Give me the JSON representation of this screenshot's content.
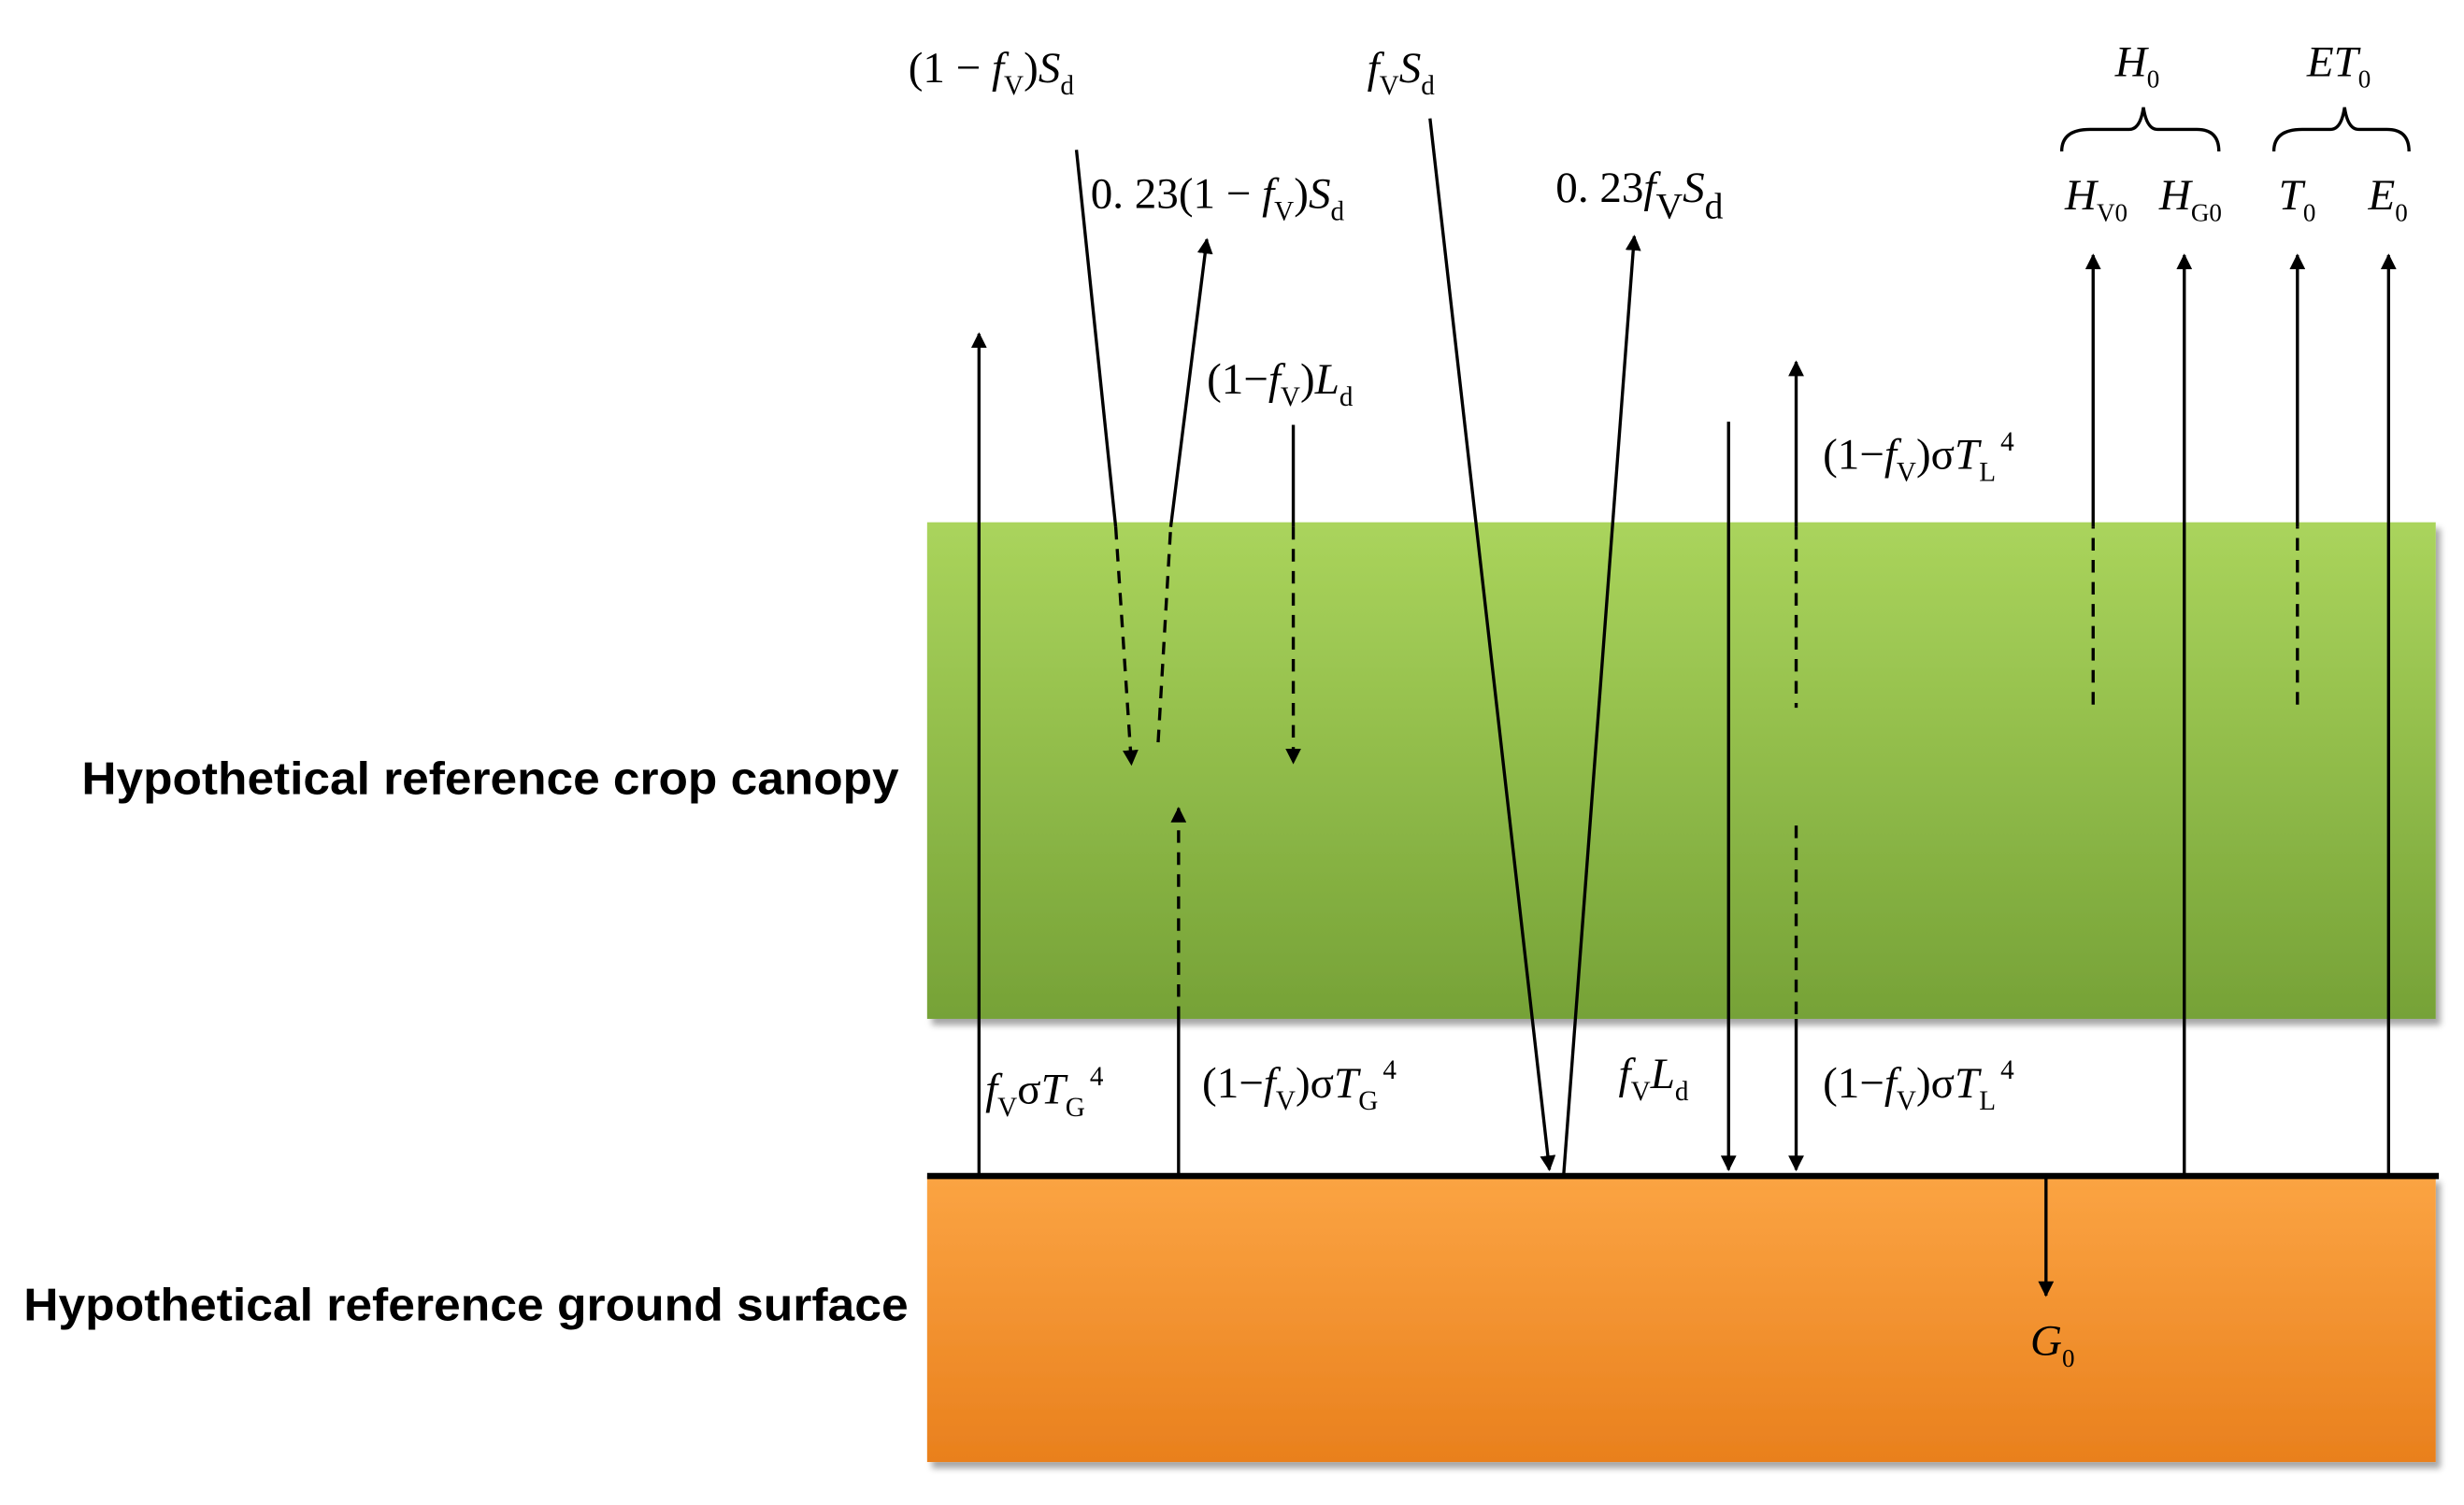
{
  "labels": [
    {
      "runs": [
        {
          "text": "(1 − "
        },
        {
          "text": "f",
          "sub": "V"
        },
        {
          "text": ")"
        },
        {
          "text": "S",
          "sub": "d"
        }
      ]
    },
    {
      "runs": [
        {
          "text": "0. 23(1 − "
        },
        {
          "text": "f",
          "sub": "V"
        },
        {
          "text": ")"
        },
        {
          "text": "S",
          "sub": "d"
        }
      ]
    },
    {
      "runs": [
        {
          "text": "f",
          "sub": "V"
        },
        {
          "text": "S",
          "sub": "d"
        }
      ]
    },
    {
      "runs": [
        {
          "text": "0. 23"
        },
        {
          "text": "f",
          "sub": "V"
        },
        {
          "text": "S",
          "sub": "d"
        }
      ]
    },
    {
      "runs": [
        {
          "text": "(1−"
        },
        {
          "text": "f",
          "sub": "V"
        },
        {
          "text": ")"
        },
        {
          "text": "L",
          "sub": "d"
        }
      ]
    },
    {
      "runs": [
        {
          "text": "(1−"
        },
        {
          "text": "f",
          "sub": "V"
        },
        {
          "text": ")σ"
        },
        {
          "text": "T",
          "sub": "L",
          "sup": "4"
        }
      ]
    },
    {
      "runs": [
        {
          "text": "H",
          "sub": "0"
        }
      ]
    },
    {
      "runs": [
        {
          "text": "H",
          "sub": "V0"
        }
      ]
    },
    {
      "runs": [
        {
          "text": "H",
          "sub": "G0"
        }
      ]
    },
    {
      "runs": [
        {
          "text": "ET",
          "sub": "0"
        }
      ]
    },
    {
      "runs": [
        {
          "text": "T",
          "sub": "0"
        }
      ]
    },
    {
      "runs": [
        {
          "text": "E",
          "sub": "0"
        }
      ]
    },
    {
      "runs": [
        {
          "text": "f",
          "sub": "V"
        },
        {
          "text": "σ"
        },
        {
          "text": "T",
          "sub": "G",
          "sup": "4"
        }
      ]
    },
    {
      "runs": [
        {
          "text": "(1−"
        },
        {
          "text": "f",
          "sub": "V"
        },
        {
          "text": ")σ"
        },
        {
          "text": "T",
          "sub": "G",
          "sup": "4"
        }
      ]
    },
    {
      "runs": [
        {
          "text": "f",
          "sub": "V"
        },
        {
          "text": "L",
          "sub": "d"
        }
      ]
    },
    {
      "runs": [
        {
          "text": "(1−"
        },
        {
          "text": "f",
          "sub": "V"
        },
        {
          "text": ")σ"
        },
        {
          "text": "T",
          "sub": "L",
          "sup": "4"
        }
      ]
    },
    {
      "runs": [
        {
          "text": "G",
          "sub": "0"
        }
      ]
    }
  ],
  "layers": {
    "canopy": "Hypothetical reference crop canopy",
    "ground": "Hypothetical reference ground surface"
  }
}
